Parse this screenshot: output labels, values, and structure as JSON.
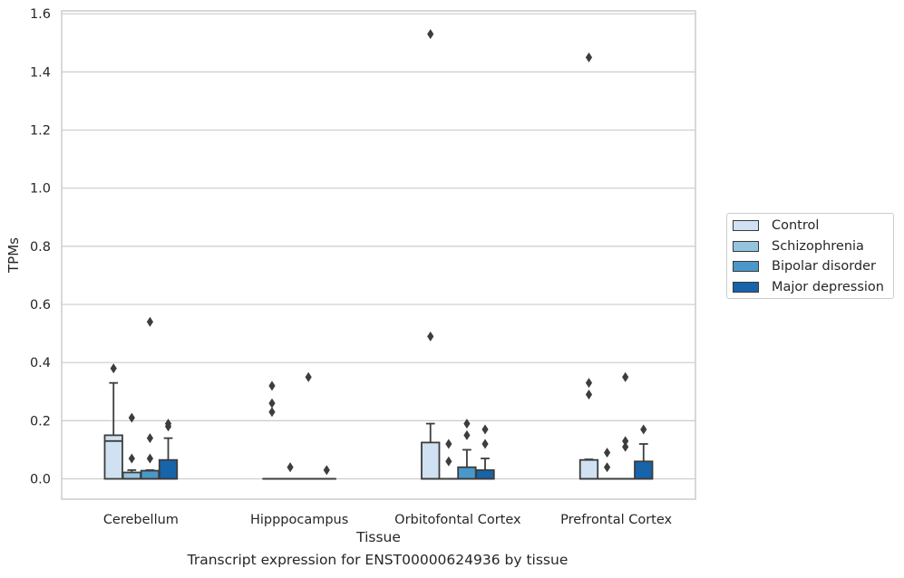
{
  "chart_data": {
    "type": "box",
    "title": "",
    "caption": "Transcript expression for ENST00000624936 by tissue",
    "xlabel": "Tissue",
    "ylabel": "TPMs",
    "ylim": [
      -0.07,
      1.61
    ],
    "yticks": [
      0.0,
      0.2,
      0.4,
      0.6,
      0.8,
      1.0,
      1.2,
      1.4,
      1.6
    ],
    "ytick_labels": [
      "0.0",
      "0.2",
      "0.4",
      "0.6",
      "0.8",
      "1.0",
      "1.2",
      "1.4",
      "1.6"
    ],
    "categories": [
      "Cerebellum",
      "Hipppocampus",
      "Orbitofontal Cortex",
      "Prefrontal Cortex"
    ],
    "grid": "horizontal",
    "legend_position": "right",
    "series": [
      {
        "name": "Control",
        "color": "#d0e1f2",
        "boxes": [
          {
            "q1": 0.0,
            "median": 0.13,
            "q3": 0.15,
            "whisker_low": 0.0,
            "whisker_high": 0.33,
            "outliers": [
              0.38
            ]
          },
          {
            "q1": 0.0,
            "median": 0.0,
            "q3": 0.0,
            "whisker_low": 0.0,
            "whisker_high": 0.0,
            "outliers": [
              0.32,
              0.26,
              0.23
            ]
          },
          {
            "q1": 0.0,
            "median": 0.0,
            "q3": 0.125,
            "whisker_low": 0.0,
            "whisker_high": 0.19,
            "outliers": [
              0.49,
              1.53
            ]
          },
          {
            "q1": 0.0,
            "median": 0.0,
            "q3": 0.065,
            "whisker_low": 0.0,
            "whisker_high": 0.067,
            "outliers": [
              0.33,
              0.29,
              1.45
            ]
          }
        ]
      },
      {
        "name": "Schizophrenia",
        "color": "#94c4df",
        "boxes": [
          {
            "q1": 0.0,
            "median": 0.0,
            "q3": 0.022,
            "whisker_low": 0.0,
            "whisker_high": 0.03,
            "outliers": [
              0.07,
              0.21
            ]
          },
          {
            "q1": 0.0,
            "median": 0.0,
            "q3": 0.0,
            "whisker_low": 0.0,
            "whisker_high": 0.0,
            "outliers": [
              0.04
            ]
          },
          {
            "q1": 0.0,
            "median": 0.0,
            "q3": 0.0,
            "whisker_low": 0.0,
            "whisker_high": 0.0,
            "outliers": [
              0.06,
              0.12
            ]
          },
          {
            "q1": 0.0,
            "median": 0.0,
            "q3": 0.0,
            "whisker_low": 0.0,
            "whisker_high": 0.0,
            "outliers": [
              0.04,
              0.09
            ]
          }
        ]
      },
      {
        "name": "Bipolar disorder",
        "color": "#4a98c9",
        "boxes": [
          {
            "q1": 0.0,
            "median": 0.0,
            "q3": 0.028,
            "whisker_low": 0.0,
            "whisker_high": 0.03,
            "outliers": [
              0.07,
              0.14,
              0.54
            ]
          },
          {
            "q1": 0.0,
            "median": 0.0,
            "q3": 0.0,
            "whisker_low": 0.0,
            "whisker_high": 0.0,
            "outliers": [
              0.35
            ]
          },
          {
            "q1": 0.0,
            "median": 0.0,
            "q3": 0.04,
            "whisker_low": 0.0,
            "whisker_high": 0.1,
            "outliers": [
              0.15,
              0.19
            ]
          },
          {
            "q1": 0.0,
            "median": 0.0,
            "q3": 0.0,
            "whisker_low": 0.0,
            "whisker_high": 0.0,
            "outliers": [
              0.11,
              0.13,
              0.35
            ]
          }
        ]
      },
      {
        "name": "Major depression",
        "color": "#1764ab",
        "boxes": [
          {
            "q1": 0.0,
            "median": 0.0,
            "q3": 0.065,
            "whisker_low": 0.0,
            "whisker_high": 0.14,
            "outliers": [
              0.18,
              0.19
            ]
          },
          {
            "q1": 0.0,
            "median": 0.0,
            "q3": 0.0,
            "whisker_low": 0.0,
            "whisker_high": 0.0,
            "outliers": [
              0.03
            ]
          },
          {
            "q1": 0.0,
            "median": 0.0,
            "q3": 0.03,
            "whisker_low": 0.0,
            "whisker_high": 0.07,
            "outliers": [
              0.12,
              0.17
            ]
          },
          {
            "q1": 0.0,
            "median": 0.0,
            "q3": 0.06,
            "whisker_low": 0.0,
            "whisker_high": 0.12,
            "outliers": [
              0.17
            ]
          }
        ]
      }
    ]
  }
}
